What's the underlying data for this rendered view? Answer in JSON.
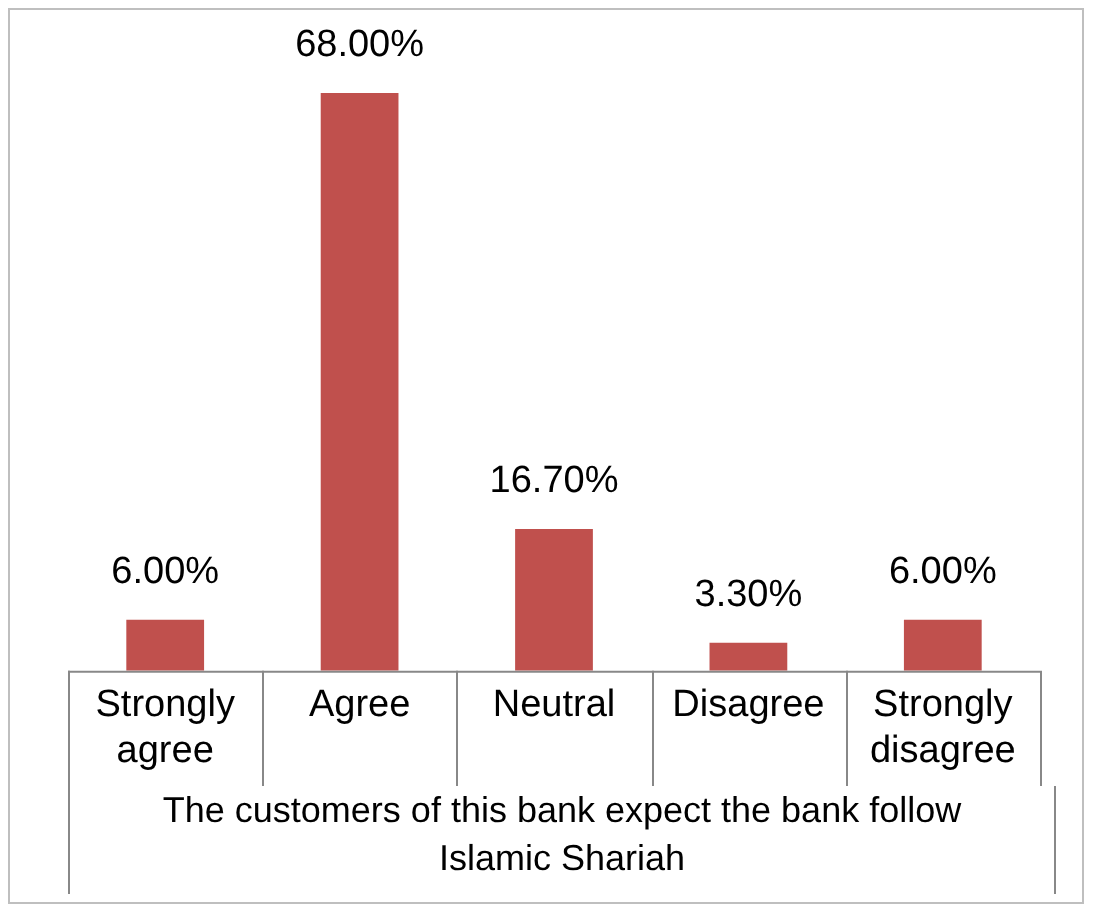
{
  "chart_data": {
    "type": "bar",
    "categories": [
      "Strongly agree",
      "Agree",
      "Neutral",
      "Disagree",
      "Strongly disagree"
    ],
    "values": [
      6,
      68,
      16.7,
      3.3,
      6
    ],
    "value_labels": [
      "6.00%",
      "68.00%",
      "16.70%",
      "3.30%",
      "6.00%"
    ],
    "color": "#c0504d",
    "xlabel": "The customers of this bank expect the bank follow Islamic Shariah",
    "grid": false,
    "legend": false
  }
}
